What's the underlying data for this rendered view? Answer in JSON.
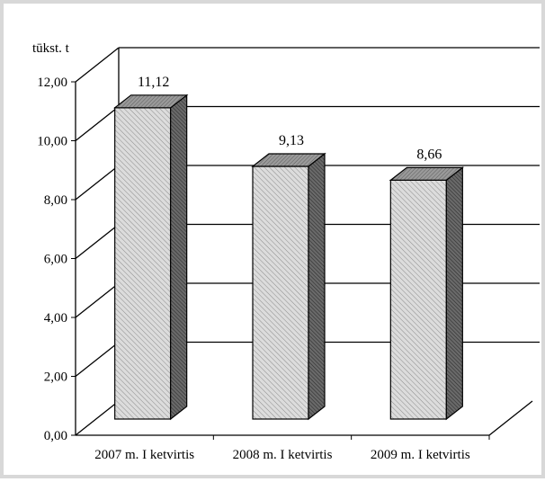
{
  "chart_data": {
    "type": "bar",
    "three_d": true,
    "y_unit_label": "tūkst. t",
    "categories": [
      "2007 m. I ketvirtis",
      "2008 m. I ketvirtis",
      "2009 m. I ketvirtis"
    ],
    "values": [
      11.12,
      9.13,
      8.66
    ],
    "value_labels": [
      "11,12",
      "9,13",
      "8,66"
    ],
    "y_ticks": [
      "0,00",
      "2,00",
      "4,00",
      "6,00",
      "8,00",
      "10,00",
      "12,00"
    ],
    "ylim": [
      0,
      12
    ],
    "grid": true,
    "legend": "none",
    "colors": {
      "bar_front": "#d4d4d4",
      "bar_side": "#5a5a5a",
      "bar_top": "#8a8a8a",
      "grid": "#000000",
      "frame_border": "#d8d8d8"
    }
  }
}
